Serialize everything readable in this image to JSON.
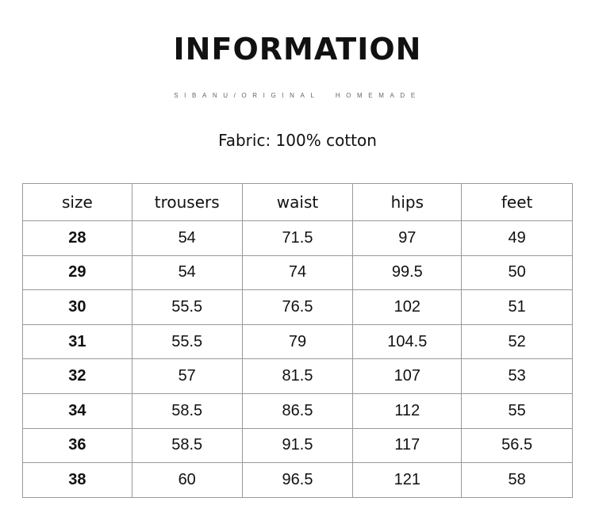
{
  "title": "INFORMATION",
  "subtitle": "SIBANU/ORIGINAL  HOMEMADE",
  "fabric": "Fabric: 100% cotton",
  "table": {
    "headers": [
      "size",
      "trousers",
      "waist",
      "hips",
      "feet"
    ],
    "rows": [
      [
        "28",
        "54",
        "71.5",
        "97",
        "49"
      ],
      [
        "29",
        "54",
        "74",
        "99.5",
        "50"
      ],
      [
        "30",
        "55.5",
        "76.5",
        "102",
        "51"
      ],
      [
        "31",
        "55.5",
        "79",
        "104.5",
        "52"
      ],
      [
        "32",
        "57",
        "81.5",
        "107",
        "53"
      ],
      [
        "34",
        "58.5",
        "86.5",
        "112",
        "55"
      ],
      [
        "36",
        "58.5",
        "91.5",
        "117",
        "56.5"
      ],
      [
        "38",
        "60",
        "96.5",
        "121",
        "58"
      ]
    ]
  }
}
